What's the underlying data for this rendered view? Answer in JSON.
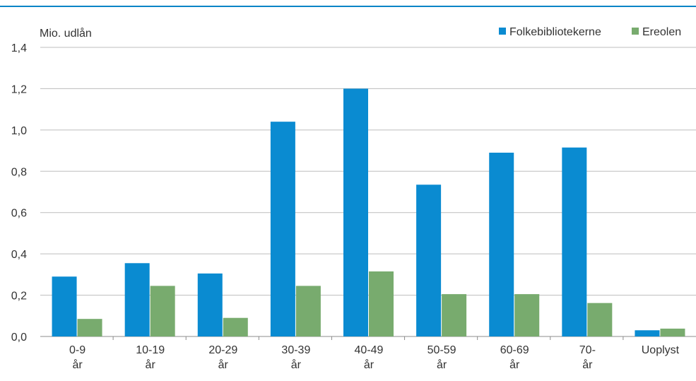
{
  "chart_data": {
    "type": "bar",
    "ylabel": "Mio. udlån",
    "ylim": [
      0,
      1.4
    ],
    "yticks": [
      "0,0",
      "0,2",
      "0,4",
      "0,6",
      "0,8",
      "1,0",
      "1,2",
      "1,4"
    ],
    "ytick_values": [
      0,
      0.2,
      0.4,
      0.6,
      0.8,
      1.0,
      1.2,
      1.4
    ],
    "categories": [
      [
        "0-9",
        "år"
      ],
      [
        "10-19",
        "år"
      ],
      [
        "20-29",
        "år"
      ],
      [
        "30-39",
        "år"
      ],
      [
        "40-49",
        "år"
      ],
      [
        "50-59",
        "år"
      ],
      [
        "60-69",
        "år"
      ],
      [
        "70-",
        "år"
      ],
      [
        "Uoplyst"
      ]
    ],
    "series": [
      {
        "name": "Folkebibliotekerne",
        "color": "#0a8bd1",
        "values": [
          0.29,
          0.355,
          0.305,
          1.04,
          1.2,
          0.735,
          0.89,
          0.915,
          0.03
        ]
      },
      {
        "name": "Ereolen",
        "color": "#78ab6e",
        "values": [
          0.085,
          0.245,
          0.09,
          0.245,
          0.315,
          0.205,
          0.205,
          0.162,
          0.038
        ]
      }
    ],
    "grid": true,
    "legend_position": "top-right"
  }
}
